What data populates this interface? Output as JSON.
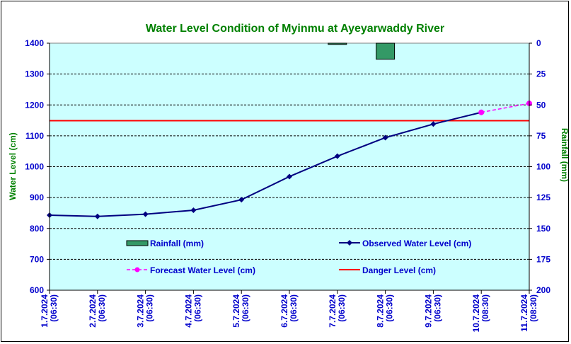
{
  "chart_data": {
    "type": "line",
    "title": "Water Level Condition of Myinmu at Ayeyarwaddy River",
    "ylabel": "Water Level (cm)",
    "y2label": "Rainfall (mm)",
    "ylim": [
      600,
      1400
    ],
    "y2lim": [
      200,
      0
    ],
    "yticks": [
      "1400",
      "1300",
      "1200",
      "1100",
      "1000",
      "900",
      "800",
      "700",
      "600"
    ],
    "y2ticks": [
      "0",
      "25",
      "50",
      "75",
      "100",
      "125",
      "150",
      "175",
      "200"
    ],
    "categories": [
      "1.7.2024 (06:30)",
      "2.7.2024 (06:30)",
      "3.7.2024 (06:30)",
      "4.7.2024 (06:30)",
      "5.7.2024 (06:30)",
      "6.7.2024 (06:30)",
      "7.7.2024 (06:30)",
      "8.7.2024 (06:30)",
      "9.7.2024 (06:30)",
      "10.7.2024 (08:30)",
      "11.7.2024 (08:30)"
    ],
    "x_date_lines": [
      "1.7.2024",
      "2.7.2024",
      "3.7.2024",
      "4.7.2024",
      "5.7.2024",
      "6.7.2024",
      "7.7.2024",
      "8.7.2024",
      "9.7.2024",
      "10.7.2024",
      "11.7.2024"
    ],
    "x_time_lines": [
      "(06:30)",
      "(06:30)",
      "(06:30)",
      "(06:30)",
      "(06:30)",
      "(06:30)",
      "(06:30)",
      "(06:30)",
      "(06:30)",
      "(08:30)",
      "(08:30)"
    ],
    "series": [
      {
        "name": "Rainfall (mm)",
        "kind": "bar",
        "axis": "right",
        "color": "#339966",
        "values": [
          0,
          0,
          0,
          0,
          0,
          0,
          1,
          13,
          0,
          0,
          0
        ]
      },
      {
        "name": "Observed Water Level (cm)",
        "kind": "line",
        "axis": "left",
        "color": "#000080",
        "marker": "diamond",
        "values": [
          843,
          839,
          846,
          859,
          893,
          968,
          1034,
          1094,
          1138,
          1176,
          null
        ]
      },
      {
        "name": "Forecast Water Level (cm)",
        "kind": "line",
        "axis": "left",
        "color": "#ff00ff",
        "dashed": true,
        "marker": "circle",
        "values": [
          null,
          null,
          null,
          null,
          null,
          null,
          null,
          null,
          null,
          1176,
          1205
        ]
      },
      {
        "name": "Danger Level (cm)",
        "kind": "hline",
        "axis": "left",
        "color": "#ff0000",
        "value": 1149
      }
    ],
    "plot_background": "#ccffff",
    "grid": true
  }
}
